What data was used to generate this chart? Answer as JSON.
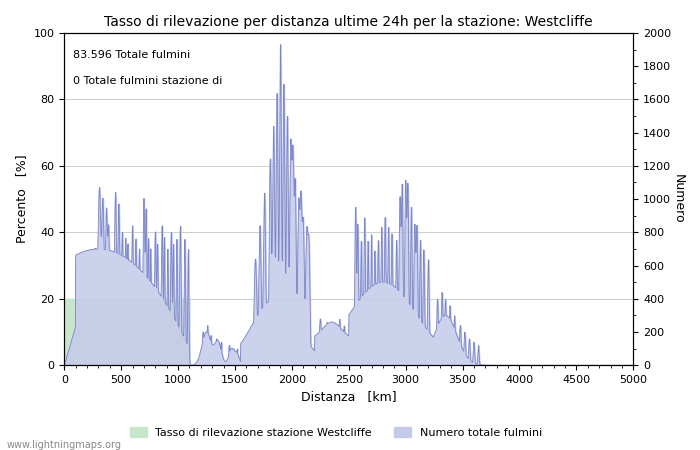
{
  "title": "Tasso di rilevazione per distanza ultime 24h per la stazione: Westcliffe",
  "xlabel": "Distanza   [km]",
  "ylabel_left": "Percento   [%]",
  "ylabel_right": "Numero",
  "xlim": [
    0,
    5000
  ],
  "ylim_left": [
    0,
    100
  ],
  "ylim_right": [
    0,
    2000
  ],
  "xticks": [
    0,
    500,
    1000,
    1500,
    2000,
    2500,
    3000,
    3500,
    4000,
    4500,
    5000
  ],
  "yticks_left": [
    0,
    20,
    40,
    60,
    80,
    100
  ],
  "yticks_right": [
    0,
    200,
    400,
    600,
    800,
    1000,
    1200,
    1400,
    1600,
    1800,
    2000
  ],
  "annotation_line1": "83.596 Totale fulmini",
  "annotation_line2": "0 Totale fulmini stazione di",
  "legend_label1": "Tasso di rilevazione stazione Westcliffe",
  "legend_label2": "Numero totale fulmini",
  "fill_green_color": "#c8e6c9",
  "fill_blue_color": "#c5cae9",
  "line_color": "#7986cb",
  "bg_color": "#ffffff",
  "watermark": "www.lightningmaps.org",
  "grid_color": "#aaaaaa",
  "title_fontsize": 10,
  "label_fontsize": 9,
  "tick_fontsize": 8,
  "annotation_fontsize": 8
}
